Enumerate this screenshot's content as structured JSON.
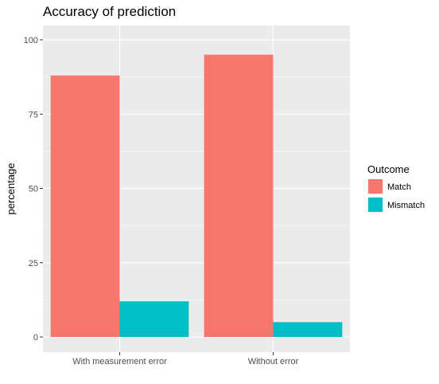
{
  "chart_data": {
    "type": "bar",
    "title": "Accuracy of prediction",
    "xlabel": "",
    "ylabel": "percentage",
    "categories": [
      "With measurement error",
      "Without error"
    ],
    "series": [
      {
        "name": "Match",
        "values": [
          88,
          95
        ]
      },
      {
        "name": "Mismatch",
        "values": [
          12,
          5
        ]
      }
    ],
    "ylim": [
      0,
      100
    ],
    "yticks": [
      0,
      25,
      50,
      75,
      100
    ],
    "legend": {
      "title": "Outcome",
      "position": "right"
    },
    "grid": true,
    "colors": {
      "Match": "#F8766D",
      "Mismatch": "#00BFC4",
      "panel": "#EBEBEB",
      "grid": "#FFFFFF"
    }
  }
}
